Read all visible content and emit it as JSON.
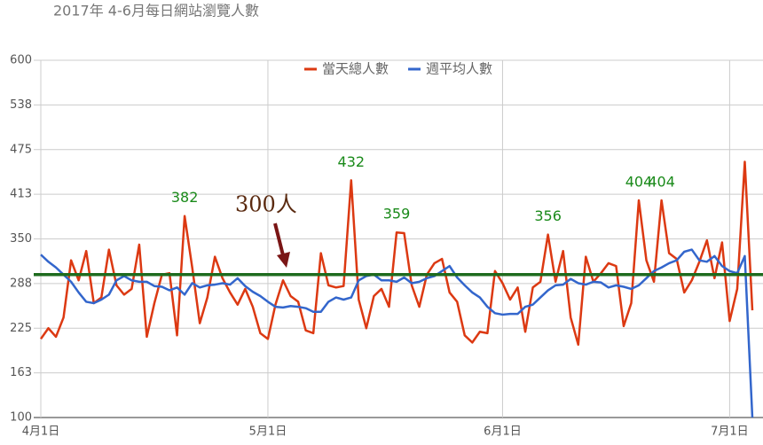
{
  "chart_data": {
    "type": "line",
    "title": "2017年 4-6月每日網站瀏覽人數",
    "categories": [
      "4月1日",
      null,
      null,
      null,
      null,
      null,
      null,
      null,
      null,
      null,
      null,
      null,
      null,
      null,
      null,
      null,
      null,
      null,
      null,
      null,
      null,
      null,
      null,
      null,
      null,
      null,
      null,
      null,
      null,
      null,
      "5月1日",
      null,
      null,
      null,
      null,
      null,
      null,
      null,
      null,
      null,
      null,
      null,
      null,
      null,
      null,
      null,
      null,
      null,
      null,
      null,
      null,
      null,
      null,
      null,
      null,
      null,
      null,
      null,
      null,
      null,
      null,
      "6月1日",
      null,
      null,
      null,
      null,
      null,
      null,
      null,
      null,
      null,
      null,
      null,
      null,
      null,
      null,
      null,
      null,
      null,
      null,
      null,
      null,
      null,
      null,
      null,
      null,
      null,
      null,
      null,
      null,
      null,
      "7月1日",
      null,
      null,
      null
    ],
    "series": [
      {
        "name": "當天總人數",
        "color": "#dc3912",
        "values": [
          210,
          225,
          213,
          240,
          320,
          292,
          333,
          260,
          268,
          335,
          285,
          272,
          280,
          342,
          213,
          260,
          300,
          302,
          215,
          382,
          310,
          232,
          268,
          325,
          295,
          275,
          258,
          280,
          255,
          218,
          210,
          258,
          292,
          270,
          262,
          222,
          218,
          330,
          285,
          282,
          284,
          432,
          265,
          225,
          270,
          280,
          255,
          359,
          358,
          285,
          255,
          300,
          316,
          322,
          275,
          262,
          215,
          205,
          220,
          218,
          305,
          288,
          265,
          282,
          220,
          282,
          290,
          356,
          290,
          333,
          240,
          202,
          325,
          290,
          302,
          316,
          312,
          228,
          260,
          404,
          320,
          290,
          404,
          330,
          322,
          275,
          292,
          318,
          348,
          295,
          345,
          235,
          280,
          458,
          250
        ],
        "value_labels": [
          null,
          null,
          null,
          null,
          null,
          null,
          null,
          null,
          null,
          null,
          null,
          null,
          null,
          null,
          null,
          null,
          null,
          null,
          null,
          "382",
          null,
          null,
          null,
          null,
          null,
          null,
          null,
          null,
          null,
          null,
          null,
          null,
          null,
          null,
          null,
          null,
          null,
          null,
          null,
          null,
          null,
          "432",
          null,
          null,
          null,
          null,
          null,
          "359",
          null,
          null,
          null,
          null,
          null,
          null,
          null,
          null,
          null,
          null,
          null,
          null,
          null,
          null,
          null,
          null,
          null,
          null,
          null,
          "356",
          null,
          null,
          null,
          null,
          null,
          null,
          null,
          null,
          null,
          null,
          null,
          "404",
          null,
          null,
          "404",
          null,
          null,
          null,
          null,
          null,
          null,
          null,
          null,
          null,
          null,
          null,
          null
        ]
      },
      {
        "name": "週平均人數",
        "color": "#3366cc",
        "values": [
          328,
          318,
          310,
          300,
          290,
          275,
          262,
          260,
          265,
          272,
          292,
          298,
          292,
          290,
          290,
          284,
          283,
          278,
          282,
          272,
          288,
          282,
          285,
          286,
          288,
          286,
          295,
          284,
          276,
          270,
          262,
          255,
          254,
          256,
          255,
          253,
          248,
          248,
          262,
          268,
          265,
          268,
          292,
          298,
          300,
          292,
          292,
          290,
          296,
          288,
          290,
          295,
          298,
          305,
          312,
          296,
          285,
          275,
          268,
          255,
          246,
          244,
          245,
          245,
          255,
          258,
          268,
          278,
          285,
          286,
          294,
          288,
          286,
          290,
          289,
          282,
          285,
          283,
          280,
          285,
          295,
          305,
          310,
          316,
          320,
          332,
          335,
          320,
          318,
          326,
          312,
          305,
          302,
          326,
          100
        ]
      }
    ],
    "ylim": [
      100,
      600
    ],
    "yticks": [
      100,
      {
        "value": 162.5,
        "label": "163"
      },
      225,
      {
        "value": 287.5,
        "label": "288"
      },
      350,
      {
        "value": 412.5,
        "label": "413"
      },
      475,
      {
        "value": 537.5,
        "label": "538"
      },
      600
    ],
    "grid": true,
    "legend": "top",
    "reference_line": {
      "value": 300,
      "label": "300人",
      "color": "#1e6b1e"
    }
  }
}
